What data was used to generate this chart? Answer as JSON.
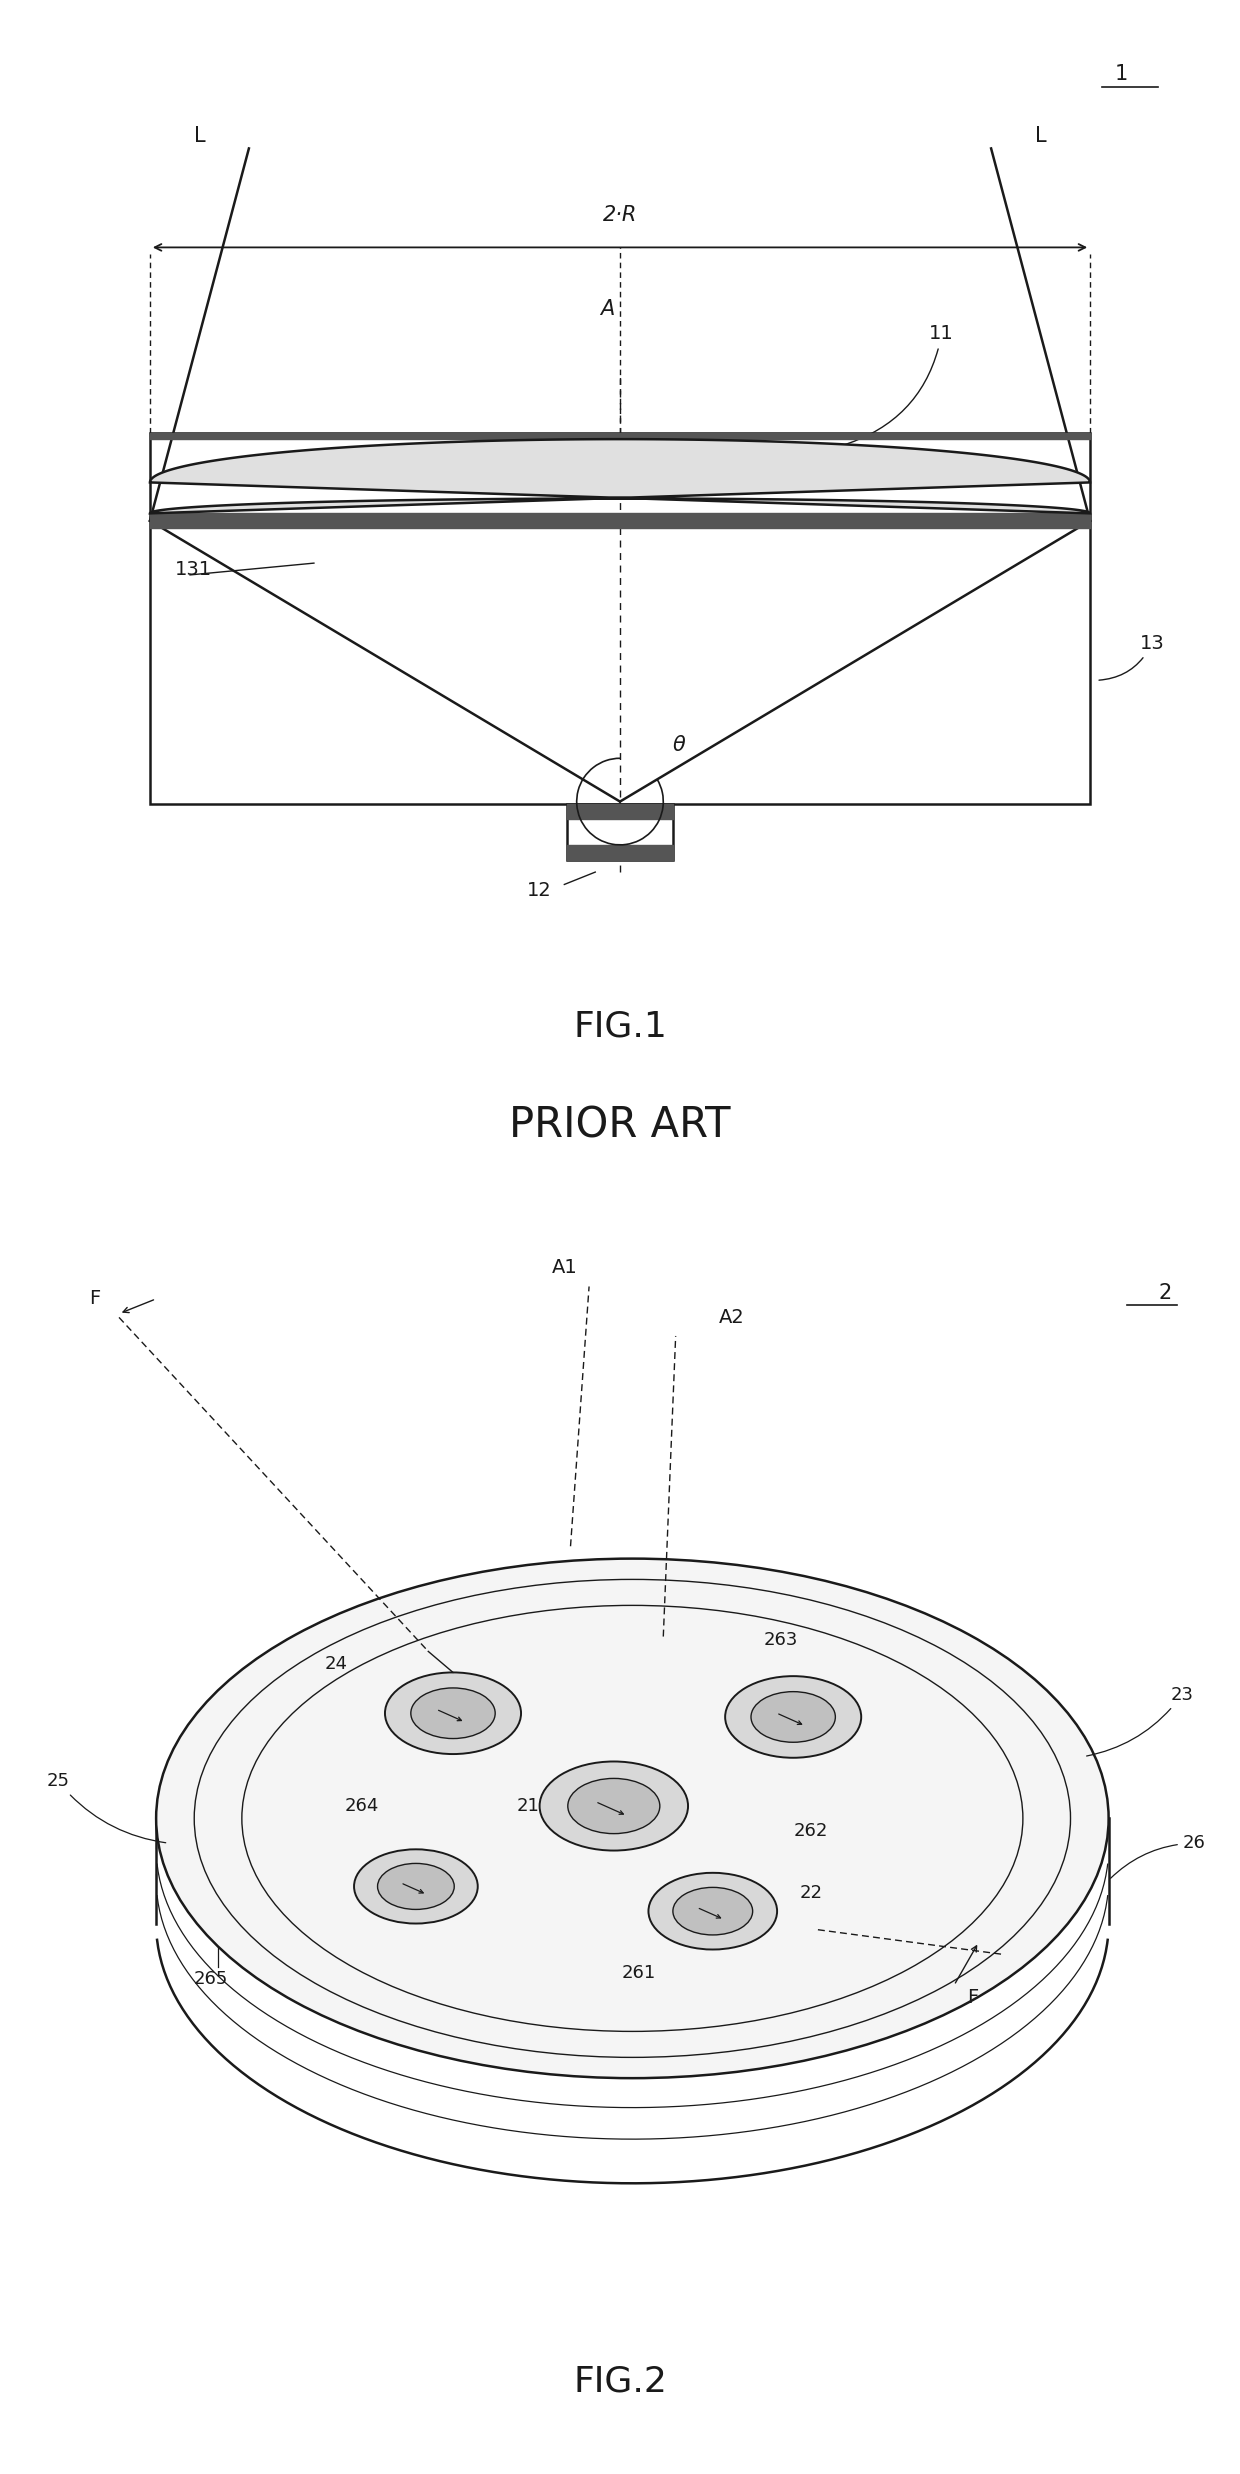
{
  "bg_color": "#ffffff",
  "line_color": "#1a1a1a",
  "text_color": "#1a1a1a",
  "fig1": {
    "title": "FIG.1",
    "subtitle": "PRIOR ART",
    "ref_1": "1",
    "label_L": "L",
    "label_A": "A",
    "label_2R": "2·R",
    "label_theta": "θ",
    "ref_11": "11",
    "ref_12": "12",
    "ref_13": "13",
    "ref_131": "131"
  },
  "fig2": {
    "title": "FIG.2",
    "ref_2": "2",
    "label_F": "F",
    "label_A1": "A1",
    "label_A2": "A2",
    "ref_21": "21",
    "ref_22": "22",
    "ref_23": "23",
    "ref_24": "24",
    "ref_25": "25",
    "ref_26": "26",
    "ref_261": "261",
    "ref_262": "262",
    "ref_263": "263",
    "ref_264": "264",
    "ref_265": "265"
  }
}
